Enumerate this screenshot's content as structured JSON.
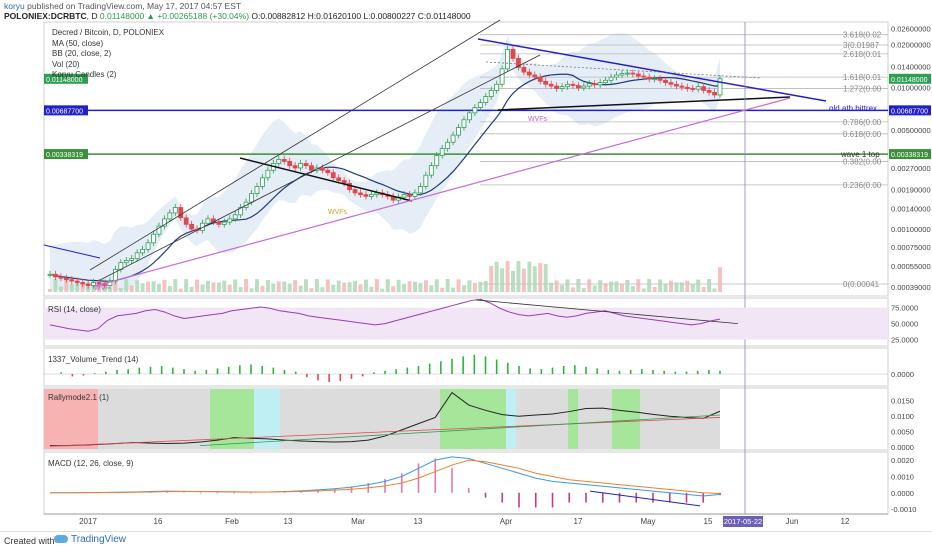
{
  "header": {
    "user": "koryu",
    "published": "published on TradingView.com, May 17, 2017 04:57 EST",
    "symbol": "POLONIEX:DCRBTC",
    "interval": "D",
    "price": "0.01148000",
    "change": "+0.00265188 (+30.04%)",
    "ohlc": "O:0.00882812 H:0.01620100 L:0.00800227 C:0.01148000"
  },
  "legend": {
    "title": "Decred / Bitcoin, D, POLONIEX",
    "items": [
      "MA (50, close)",
      "BB (20, close, 2)",
      "Vol (20)",
      "Koryu Candles (2)"
    ]
  },
  "colors": {
    "up": "#2e9e53",
    "down": "#e0484f",
    "trend_blue": "#2020c8",
    "support_purple": "#c86ad8",
    "wave_green": "#3a8f3a",
    "ma": "#1e3a78",
    "bb_fill": "#cfe0f0",
    "macd": "#3a9ae0",
    "signal": "#f08030",
    "rsi": "#9b3ab8"
  },
  "chart_data": [
    {
      "type": "candlestick",
      "title": "Decred / Bitcoin, D, POLONIEX",
      "scale": "log",
      "x_ticks": [
        "2017",
        "16",
        "Feb",
        "13",
        "Mar",
        "13",
        "Apr",
        "17",
        "May",
        "15",
        "2017-05-22",
        "Jun",
        "12"
      ],
      "y_ticks": [
        "0.02600000",
        "0.02000000",
        "0.01400000",
        "0.01000000",
        "0.00500000",
        "0.00270000",
        "0.00190000",
        "0.00140000",
        "0.00100000",
        "0.00075000",
        "0.00055000",
        "0.00039000"
      ],
      "price_labels": [
        {
          "value": "0.01148000",
          "color": "#2e9e53"
        },
        {
          "value": "0.00687700",
          "color": "#2020c8"
        },
        {
          "value": "0.00338319",
          "color": "#3a8f3a"
        }
      ],
      "fib_levels": [
        {
          "label": "3.618(0.02",
          "value": 0.0235
        },
        {
          "label": "3(0.01987",
          "value": 0.01987
        },
        {
          "label": "2.618(0.01",
          "value": 0.0172
        },
        {
          "label": "1.618(0.01",
          "value": 0.0118
        },
        {
          "label": "1.272(0.00",
          "value": 0.0098
        },
        {
          "label": "0.786(0.00",
          "value": 0.0057
        },
        {
          "label": "0.618(0.00",
          "value": 0.0047
        },
        {
          "label": "0.382(0.00",
          "value": 0.003
        },
        {
          "label": "0.236(0.00",
          "value": 0.00205
        },
        {
          "label": "0(0.00041",
          "value": 0.00041
        }
      ],
      "annotations": [
        "old ath bittrex",
        "wave 1 top",
        "WVF",
        "WVFs",
        "WVFs"
      ],
      "closes": [
        0.00048,
        0.00046,
        0.00045,
        0.00044,
        0.00043,
        0.00042,
        0.00041,
        0.0004,
        0.00042,
        0.00041,
        0.0004,
        0.00043,
        0.00052,
        0.00058,
        0.0006,
        0.00062,
        0.00068,
        0.00072,
        0.0008,
        0.00092,
        0.00105,
        0.00118,
        0.0013,
        0.00142,
        0.0012,
        0.00108,
        0.001,
        0.00098,
        0.0011,
        0.00118,
        0.00112,
        0.00108,
        0.00112,
        0.00118,
        0.00126,
        0.00142,
        0.00155,
        0.00178,
        0.002,
        0.0023,
        0.0026,
        0.0029,
        0.0031,
        0.003,
        0.0028,
        0.0027,
        0.0029,
        0.0028,
        0.0026,
        0.0027,
        0.0026,
        0.0025,
        0.0023,
        0.0022,
        0.0021,
        0.0019,
        0.0018,
        0.00175,
        0.0017,
        0.00175,
        0.0018,
        0.00175,
        0.0017,
        0.0016,
        0.00168,
        0.00175,
        0.0017,
        0.0018,
        0.002,
        0.0024,
        0.0028,
        0.0033,
        0.0037,
        0.0041,
        0.0046,
        0.0052,
        0.0059,
        0.0066,
        0.0072,
        0.0078,
        0.0086,
        0.0095,
        0.0105,
        0.0135,
        0.0185,
        0.016,
        0.0138,
        0.0128,
        0.0122,
        0.0118,
        0.011,
        0.0105,
        0.0102,
        0.0098,
        0.0101,
        0.0105,
        0.0103,
        0.0099,
        0.0102,
        0.0106,
        0.0104,
        0.0108,
        0.0112,
        0.0118,
        0.0122,
        0.0125,
        0.0126,
        0.0124,
        0.012,
        0.0118,
        0.0114,
        0.0115,
        0.0112,
        0.0108,
        0.0105,
        0.0102,
        0.01,
        0.0098,
        0.0097,
        0.0101,
        0.0095,
        0.0092,
        0.00883,
        0.01148
      ]
    },
    {
      "type": "line",
      "title": "RSI (14, close)",
      "y_ticks": [
        "75.0000",
        "50.0000",
        "25.0000"
      ],
      "ylim": [
        15,
        90
      ],
      "values": [
        48,
        45,
        42,
        40,
        38,
        42,
        55,
        62,
        64,
        66,
        70,
        72,
        68,
        62,
        58,
        60,
        62,
        64,
        66,
        70,
        72,
        74,
        76,
        74,
        70,
        68,
        66,
        62,
        60,
        58,
        56,
        54,
        52,
        50,
        48,
        50,
        54,
        58,
        62,
        66,
        70,
        74,
        78,
        82,
        86,
        88,
        82,
        74,
        68,
        64,
        62,
        64,
        66,
        62,
        60,
        62,
        66,
        68,
        70,
        66,
        62,
        60,
        58,
        56,
        54,
        52,
        50,
        48,
        50,
        54,
        57
      ]
    },
    {
      "type": "histogram",
      "title": "1337_Volume_Trend (14)",
      "y_ticks": [
        "0.0000"
      ],
      "values": [
        0,
        0.2,
        -0.3,
        -0.2,
        0.1,
        0.3,
        0.5,
        0.6,
        0.8,
        0.9,
        1.0,
        0.8,
        0.6,
        0.4,
        0.5,
        0.7,
        0.9,
        1.1,
        1.2,
        1.0,
        0.8,
        0.5,
        0.3,
        -0.4,
        -0.8,
        -1.0,
        -0.9,
        -0.6,
        -0.3,
        0.2,
        0.4,
        0.6,
        0.8,
        1.0,
        1.3,
        1.6,
        1.9,
        2.2,
        2.4,
        2.2,
        1.8,
        1.4,
        1.0,
        0.7,
        0.6,
        0.8,
        1.0,
        1.1,
        0.9,
        0.7,
        0.5,
        0.4,
        0.5,
        0.6,
        0.5,
        0.4,
        0.3,
        0.3,
        0.4,
        0.5,
        0.4
      ]
    },
    {
      "type": "line",
      "title": "Rallymode2.1 (1)",
      "y_ticks": [
        "0.0150",
        "0.0100",
        "0.0050",
        "0.0000"
      ],
      "ylim": [
        -0.001,
        0.019
      ],
      "values": [
        0.0004,
        0.0004,
        0.0006,
        0.0008,
        0.0011,
        0.0014,
        0.0012,
        0.0011,
        0.0012,
        0.0016,
        0.0022,
        0.003,
        0.0028,
        0.0026,
        0.0022,
        0.0019,
        0.0017,
        0.0016,
        0.0017,
        0.0022,
        0.0035,
        0.0055,
        0.0075,
        0.0095,
        0.0175,
        0.0135,
        0.0118,
        0.0104,
        0.0099,
        0.0103,
        0.0106,
        0.0114,
        0.0124,
        0.0125,
        0.0118,
        0.0112,
        0.0105,
        0.0099,
        0.0095,
        0.0092,
        0.0115
      ]
    },
    {
      "type": "line",
      "title": "MACD (12, 26, close, 9)",
      "y_ticks": [
        "0.0020",
        "0.0010",
        "0.0000",
        "-0.0010"
      ],
      "ylim": [
        -0.0013,
        0.0025
      ],
      "series": [
        {
          "values": [
            0,
            0,
            1e-05,
            2e-05,
            3e-05,
            5e-05,
            8e-05,
            0.0001,
            9e-05,
            7e-05,
            6e-05,
            5e-05,
            4e-05,
            5e-05,
            8e-05,
            0.00012,
            0.00018,
            0.00025,
            0.00035,
            0.0005,
            0.0007,
            0.001,
            0.0015,
            0.002,
            0.0022,
            0.0021,
            0.0018,
            0.0015,
            0.0012,
            0.0009,
            0.0007,
            0.0006,
            0.0005,
            0.0004,
            0.0003,
            0.0002,
            0.0001,
            0,
            -0.0001,
            -0.0002,
            -0.0001
          ]
        },
        {
          "values": [
            0,
            0,
            0,
            1e-05,
            2e-05,
            3e-05,
            5e-05,
            7e-05,
            8e-05,
            8e-05,
            7e-05,
            6e-05,
            5e-05,
            5e-05,
            6e-05,
            8e-05,
            0.00012,
            0.00016,
            0.00022,
            0.0003,
            0.00042,
            0.0006,
            0.0009,
            0.0013,
            0.0017,
            0.002,
            0.0019,
            0.0017,
            0.0015,
            0.0012,
            0.001,
            0.0008,
            0.0007,
            0.0006,
            0.0005,
            0.0004,
            0.0003,
            0.0002,
            0.0001,
            0,
            -5e-05
          ]
        }
      ]
    }
  ],
  "sub_panes": {
    "rsi_label": "RSI (14, close)",
    "vt_label": "1337_Volume_Trend (14)",
    "rally_label": "Rallymode2.1 (1)",
    "macd_label": "MACD (12, 26, close, 9)"
  },
  "footer": {
    "created_with": "Created with",
    "brand": "TradingView"
  }
}
